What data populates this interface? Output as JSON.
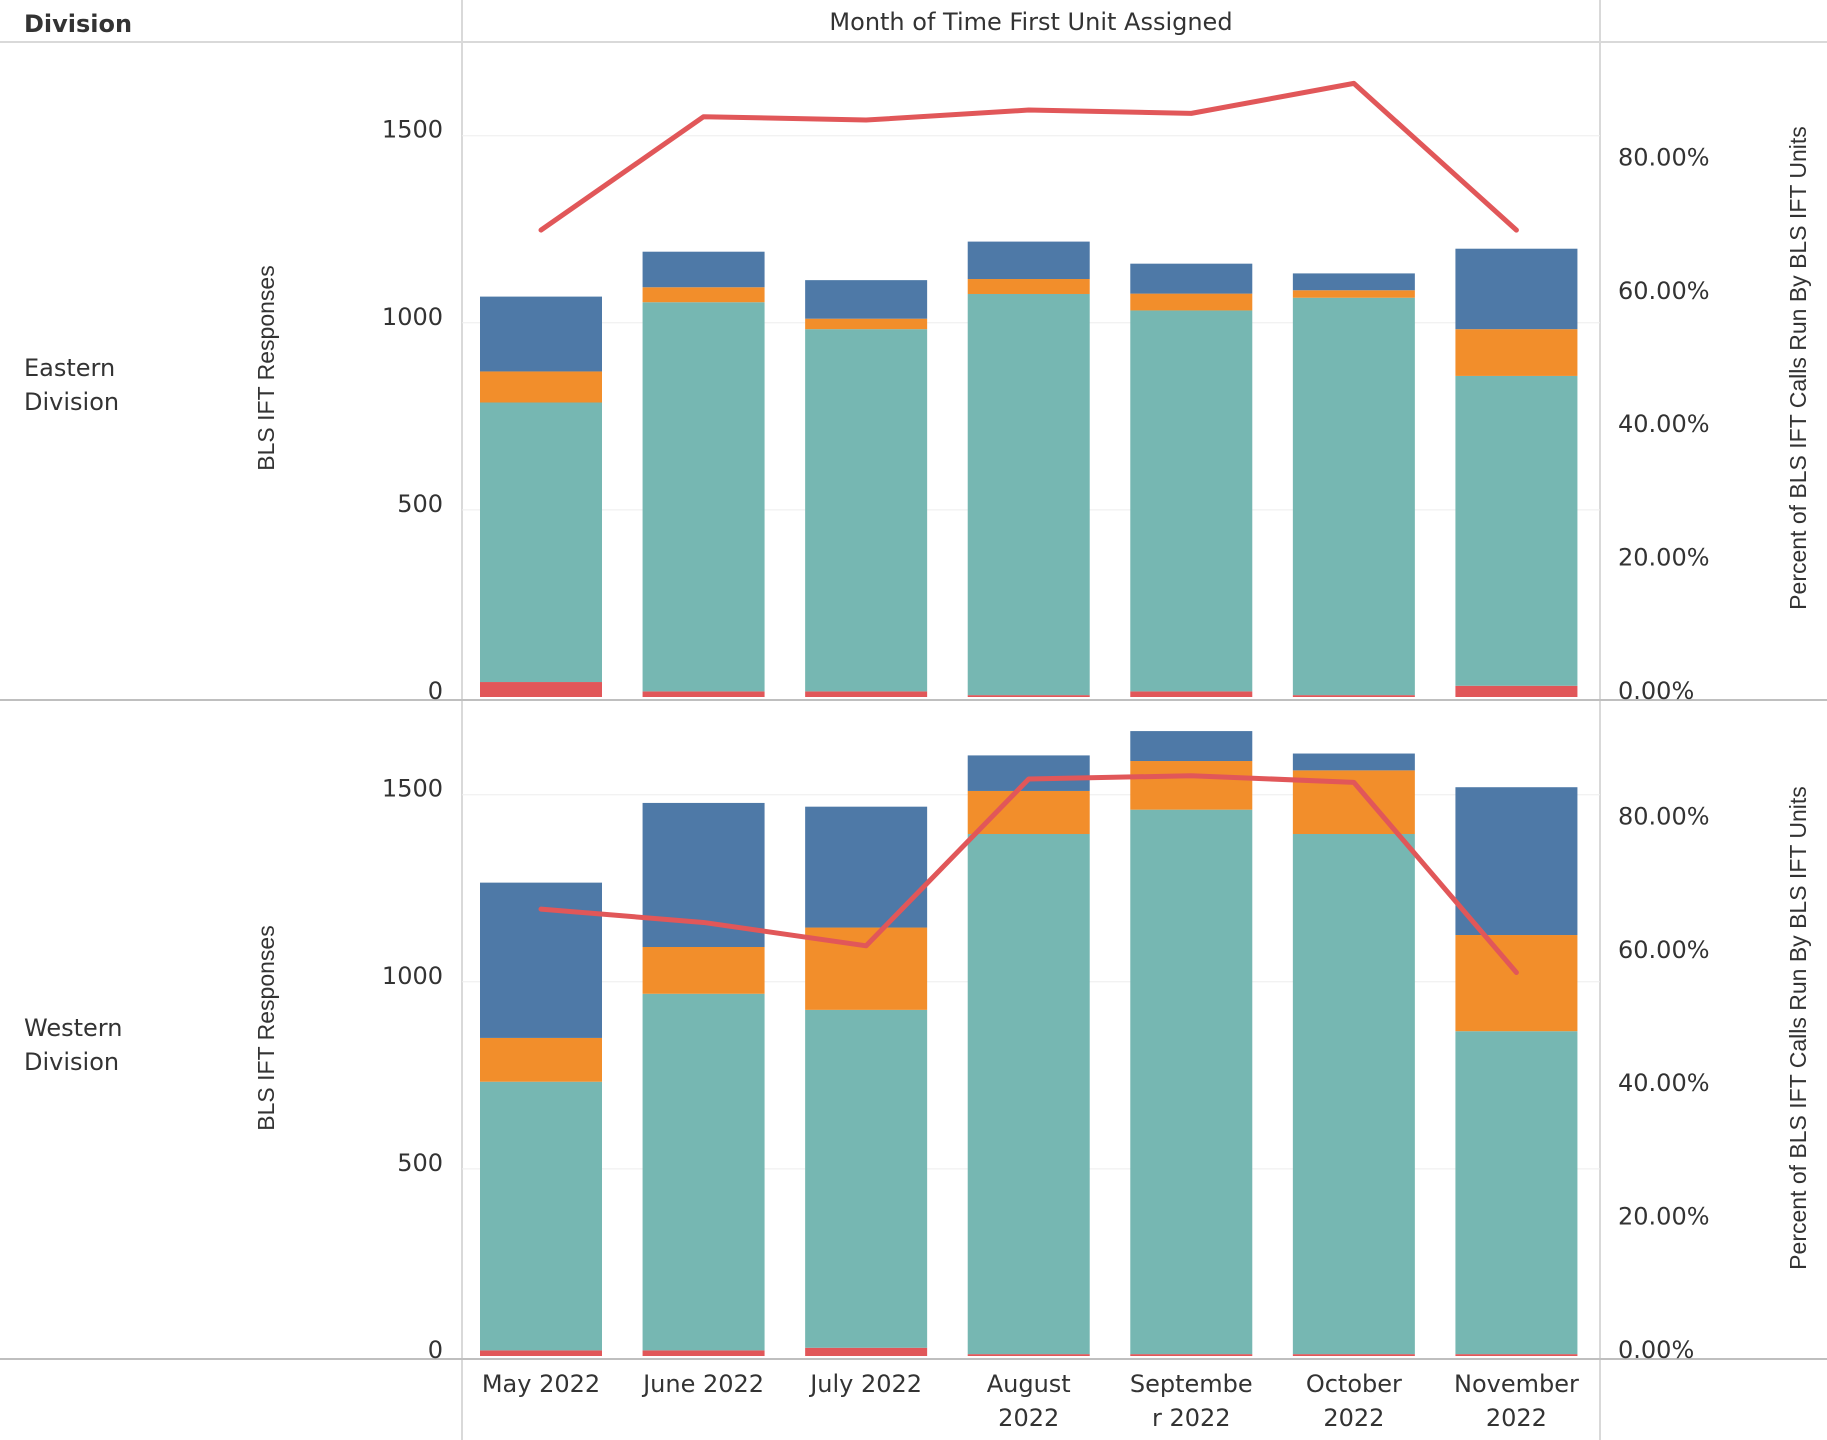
{
  "header": {
    "division_label": "Division",
    "column_title": "Month of Time First Unit Assigned"
  },
  "chart_data": {
    "type": "bar",
    "categories": [
      "May 2022",
      "June 2022",
      "July 2022",
      "August 2022",
      "September 2022",
      "October 2022",
      "November 2022"
    ],
    "category_lines": [
      [
        "May 2022"
      ],
      [
        "June 2022"
      ],
      [
        "July 2022"
      ],
      [
        "August",
        "2022"
      ],
      [
        "Septembe",
        "r 2022"
      ],
      [
        "October",
        "2022"
      ],
      [
        "November",
        "2022"
      ]
    ],
    "left_axis": {
      "label": "BLS IFT Responses",
      "ticks": [
        "0",
        "500",
        "1000",
        "1500"
      ],
      "range": [
        0,
        1750
      ]
    },
    "right_axis": {
      "label": "Percent of BLS IFT Calls Run By BLS IFT Units",
      "ticks": [
        "0.00%",
        "20.00%",
        "40.00%",
        "60.00%",
        "80.00%"
      ],
      "range": [
        0,
        0.96
      ]
    },
    "stack_colors": [
      "#e15759",
      "#76b7b2",
      "#f28e2b",
      "#4e79a7"
    ],
    "line_color": "#e15759",
    "panels": [
      {
        "row_label": [
          "Eastern",
          "Division"
        ],
        "series": [
          {
            "values": [
              40,
              15,
              15,
              5,
              15,
              5,
              30
            ]
          },
          {
            "values": [
              747,
              1040,
              968,
              1072,
              1018,
              1062,
              828
            ]
          },
          {
            "values": [
              83,
              40,
              28,
              40,
              45,
              20,
              125
            ]
          },
          {
            "values": [
              200,
              95,
              103,
              100,
              80,
              45,
              215
            ]
          }
        ],
        "line": {
          "values": [
            0.7,
            0.87,
            0.865,
            0.88,
            0.875,
            0.92,
            0.7
          ]
        }
      },
      {
        "row_label": [
          "Western",
          "Division"
        ],
        "series": [
          {
            "values": [
              15,
              15,
              22,
              5,
              5,
              5,
              5
            ]
          },
          {
            "values": [
              718,
              953,
              903,
              1390,
              1455,
              1390,
              863
            ]
          },
          {
            "values": [
              117,
              125,
              220,
              115,
              130,
              170,
              257
            ]
          },
          {
            "values": [
              415,
              385,
              323,
              95,
              80,
              45,
              395
            ]
          }
        ],
        "line": {
          "values": [
            0.67,
            0.65,
            0.615,
            0.865,
            0.87,
            0.86,
            0.575
          ]
        }
      }
    ]
  }
}
